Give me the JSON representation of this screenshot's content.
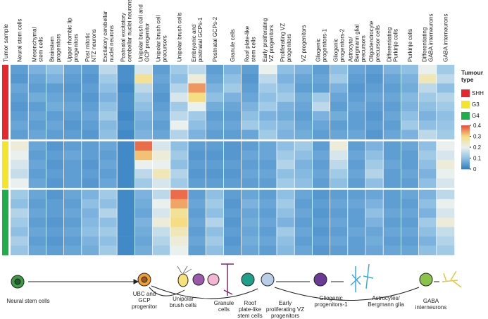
{
  "chart_data": {
    "type": "heatmap",
    "row_axis_label": "Tumor sample",
    "columns": [
      [
        "Neural stem cells"
      ],
      [
        "Mesenchymal",
        "stem cells"
      ],
      [
        "Brainstem",
        "progenitors"
      ],
      [
        "Upper rhombic lip",
        "progenitors"
      ],
      [
        "Post mitotic",
        "NTZ neurons"
      ],
      [
        "Excitatory cerebellar",
        "nuclei neurons"
      ],
      [
        "Postnatal excitatory",
        "cerebellar nuclei neurons"
      ],
      [
        "Unipolar brush cell and",
        "GCP progenitor"
      ],
      [
        "Unipolar brush cell",
        "precursors"
      ],
      [
        "Unipolar brush cells"
      ],
      [
        "Embryonic and",
        "postnatal GCPs-1"
      ],
      [
        "Postnatal GCPs-2"
      ],
      [
        "Granule cells"
      ],
      [
        "Roof plate-like",
        "stem cells"
      ],
      [
        "Early proliferating",
        "VZ progenitors"
      ],
      [
        "Proliferating VZ",
        "progenitors"
      ],
      [
        "VZ progenitors"
      ],
      [
        "Gliogenic",
        "progenitors-1"
      ],
      [
        "Gliogenic",
        "progenitors-2"
      ],
      [
        "Astrocyte/",
        "Bergmann glial",
        "precursors"
      ],
      [
        "Oligodendrocyte",
        "precursor cells"
      ],
      [
        "Differentiating",
        "Purkinje cells"
      ],
      [
        "Purkinje cells"
      ],
      [
        "Differentiating",
        "GABA interneurons"
      ],
      [
        "GABA interneurons"
      ]
    ],
    "legend_title": [
      "Tumour",
      "type"
    ],
    "groups": [
      {
        "name": "SHH",
        "color": "#e8262d"
      },
      {
        "name": "G3",
        "color": "#f4e42a"
      },
      {
        "name": "G4",
        "color": "#1fae4b"
      }
    ],
    "rows": [
      {
        "group": "SHH",
        "values": [
          0.05,
          0.08,
          0.1,
          0.06,
          0.05,
          0.15,
          0.03,
          0.18,
          0.05,
          0.12,
          0.15,
          0.05,
          0.08,
          0.05,
          0.2,
          0.1,
          0.08,
          0.05,
          0.1,
          0.06,
          0.05,
          0.08,
          0.1,
          0.2,
          0.12
        ]
      },
      {
        "group": "SHH",
        "values": [
          0.04,
          0.06,
          0.08,
          0.05,
          0.04,
          0.12,
          0.03,
          0.28,
          0.06,
          0.1,
          0.22,
          0.06,
          0.1,
          0.04,
          0.15,
          0.08,
          0.06,
          0.06,
          0.12,
          0.05,
          0.04,
          0.06,
          0.08,
          0.25,
          0.15
        ]
      },
      {
        "group": "SHH",
        "values": [
          0.06,
          0.05,
          0.05,
          0.04,
          0.05,
          0.1,
          0.02,
          0.15,
          0.05,
          0.14,
          0.35,
          0.08,
          0.12,
          0.05,
          0.12,
          0.1,
          0.05,
          0.05,
          0.08,
          0.04,
          0.05,
          0.05,
          0.07,
          0.15,
          0.1
        ]
      },
      {
        "group": "SHH",
        "values": [
          0.05,
          0.07,
          0.06,
          0.05,
          0.04,
          0.08,
          0.03,
          0.12,
          0.04,
          0.18,
          0.3,
          0.1,
          0.08,
          0.06,
          0.1,
          0.12,
          0.07,
          0.12,
          0.06,
          0.05,
          0.06,
          0.06,
          0.09,
          0.12,
          0.14
        ]
      },
      {
        "group": "SHH",
        "values": [
          0.04,
          0.05,
          0.07,
          0.06,
          0.05,
          0.1,
          0.03,
          0.1,
          0.05,
          0.12,
          0.2,
          0.07,
          0.06,
          0.08,
          0.12,
          0.08,
          0.06,
          0.15,
          0.05,
          0.06,
          0.05,
          0.05,
          0.08,
          0.1,
          0.12
        ]
      },
      {
        "group": "SHH",
        "values": [
          0.05,
          0.06,
          0.05,
          0.05,
          0.06,
          0.12,
          0.02,
          0.08,
          0.06,
          0.15,
          0.12,
          0.05,
          0.05,
          0.1,
          0.08,
          0.07,
          0.05,
          0.08,
          0.07,
          0.05,
          0.04,
          0.06,
          0.1,
          0.08,
          0.1
        ]
      },
      {
        "group": "SHH",
        "values": [
          0.06,
          0.05,
          0.06,
          0.04,
          0.05,
          0.09,
          0.03,
          0.07,
          0.05,
          0.2,
          0.1,
          0.06,
          0.06,
          0.12,
          0.1,
          0.09,
          0.06,
          0.06,
          0.05,
          0.05,
          0.05,
          0.05,
          0.12,
          0.1,
          0.11
        ]
      },
      {
        "group": "SHH",
        "values": [
          0.05,
          0.06,
          0.05,
          0.05,
          0.04,
          0.1,
          0.02,
          0.08,
          0.06,
          0.14,
          0.08,
          0.05,
          0.05,
          0.06,
          0.12,
          0.08,
          0.07,
          0.05,
          0.06,
          0.06,
          0.04,
          0.06,
          0.08,
          0.15,
          0.12
        ]
      },
      {
        "group": "G3",
        "values": [
          0.22,
          0.06,
          0.04,
          0.05,
          0.05,
          0.06,
          0.02,
          0.38,
          0.18,
          0.1,
          0.05,
          0.05,
          0.04,
          0.05,
          0.06,
          0.1,
          0.12,
          0.05,
          0.22,
          0.05,
          0.08,
          0.05,
          0.06,
          0.1,
          0.2
        ]
      },
      {
        "group": "G3",
        "values": [
          0.2,
          0.05,
          0.05,
          0.06,
          0.05,
          0.05,
          0.02,
          0.32,
          0.22,
          0.12,
          0.04,
          0.04,
          0.04,
          0.06,
          0.06,
          0.12,
          0.1,
          0.06,
          0.18,
          0.06,
          0.1,
          0.05,
          0.05,
          0.12,
          0.18
        ]
      },
      {
        "group": "G3",
        "values": [
          0.18,
          0.06,
          0.04,
          0.05,
          0.04,
          0.06,
          0.02,
          0.2,
          0.2,
          0.1,
          0.05,
          0.05,
          0.05,
          0.05,
          0.05,
          0.14,
          0.08,
          0.05,
          0.15,
          0.05,
          0.12,
          0.06,
          0.05,
          0.1,
          0.22
        ]
      },
      {
        "group": "G3",
        "values": [
          0.16,
          0.05,
          0.05,
          0.05,
          0.05,
          0.05,
          0.02,
          0.15,
          0.25,
          0.14,
          0.04,
          0.04,
          0.04,
          0.06,
          0.06,
          0.1,
          0.09,
          0.06,
          0.12,
          0.06,
          0.14,
          0.05,
          0.06,
          0.08,
          0.2
        ]
      },
      {
        "group": "G3",
        "values": [
          0.2,
          0.06,
          0.04,
          0.05,
          0.04,
          0.06,
          0.02,
          0.12,
          0.18,
          0.12,
          0.05,
          0.05,
          0.05,
          0.05,
          0.05,
          0.12,
          0.1,
          0.05,
          0.1,
          0.05,
          0.1,
          0.05,
          0.05,
          0.1,
          0.18
        ]
      },
      {
        "group": "G4",
        "values": [
          0.12,
          0.06,
          0.04,
          0.06,
          0.08,
          0.12,
          0.02,
          0.08,
          0.15,
          0.38,
          0.05,
          0.1,
          0.05,
          0.06,
          0.05,
          0.1,
          0.06,
          0.04,
          0.05,
          0.05,
          0.06,
          0.05,
          0.06,
          0.08,
          0.15
        ]
      },
      {
        "group": "G4",
        "values": [
          0.1,
          0.05,
          0.05,
          0.05,
          0.1,
          0.1,
          0.02,
          0.07,
          0.2,
          0.34,
          0.06,
          0.12,
          0.04,
          0.08,
          0.06,
          0.12,
          0.05,
          0.05,
          0.06,
          0.06,
          0.08,
          0.05,
          0.05,
          0.1,
          0.2
        ]
      },
      {
        "group": "G4",
        "values": [
          0.14,
          0.06,
          0.05,
          0.06,
          0.08,
          0.14,
          0.02,
          0.06,
          0.18,
          0.28,
          0.05,
          0.1,
          0.05,
          0.06,
          0.05,
          0.1,
          0.06,
          0.04,
          0.05,
          0.05,
          0.1,
          0.06,
          0.06,
          0.08,
          0.18
        ]
      },
      {
        "group": "G4",
        "values": [
          0.12,
          0.05,
          0.04,
          0.05,
          0.09,
          0.1,
          0.02,
          0.08,
          0.22,
          0.3,
          0.06,
          0.14,
          0.04,
          0.07,
          0.06,
          0.08,
          0.05,
          0.05,
          0.06,
          0.05,
          0.08,
          0.05,
          0.05,
          0.12,
          0.22
        ]
      },
      {
        "group": "G4",
        "values": [
          0.1,
          0.06,
          0.05,
          0.06,
          0.1,
          0.12,
          0.02,
          0.07,
          0.16,
          0.25,
          0.05,
          0.1,
          0.05,
          0.06,
          0.05,
          0.12,
          0.06,
          0.04,
          0.05,
          0.06,
          0.06,
          0.06,
          0.06,
          0.1,
          0.16
        ]
      },
      {
        "group": "G4",
        "values": [
          0.13,
          0.05,
          0.04,
          0.05,
          0.08,
          0.1,
          0.02,
          0.06,
          0.14,
          0.22,
          0.06,
          0.12,
          0.04,
          0.07,
          0.06,
          0.1,
          0.05,
          0.05,
          0.06,
          0.05,
          0.07,
          0.05,
          0.05,
          0.08,
          0.14
        ]
      },
      {
        "group": "G4",
        "values": [
          0.11,
          0.06,
          0.05,
          0.06,
          0.07,
          0.12,
          0.02,
          0.07,
          0.12,
          0.2,
          0.05,
          0.1,
          0.05,
          0.06,
          0.05,
          0.09,
          0.06,
          0.04,
          0.05,
          0.05,
          0.06,
          0.06,
          0.06,
          0.1,
          0.12
        ]
      }
    ],
    "zlim": [
      0,
      0.4
    ],
    "zticks": [
      0,
      0.1,
      0.2,
      0.3,
      0.4
    ],
    "colorscale": [
      "#2f7cc0",
      "#8fc0e4",
      "#e9f0ee",
      "#f6dd83",
      "#e8503c"
    ]
  },
  "diagram": {
    "labels": [
      [
        "Neural stem cells"
      ],
      [
        "UBC and",
        "GCP",
        "progenitor"
      ],
      [
        "Unipolar",
        "brush cells"
      ],
      [
        "Granule",
        "cells"
      ],
      [
        "Roof",
        "plate-like",
        "stem cells"
      ],
      [
        "Early",
        "proliferating VZ",
        "progenitors"
      ],
      [
        "Gliogenic",
        "progenitors-1"
      ],
      [
        "Astrocytes/",
        "Bergmann glia"
      ],
      [
        "GABA",
        "interneurons"
      ]
    ]
  }
}
